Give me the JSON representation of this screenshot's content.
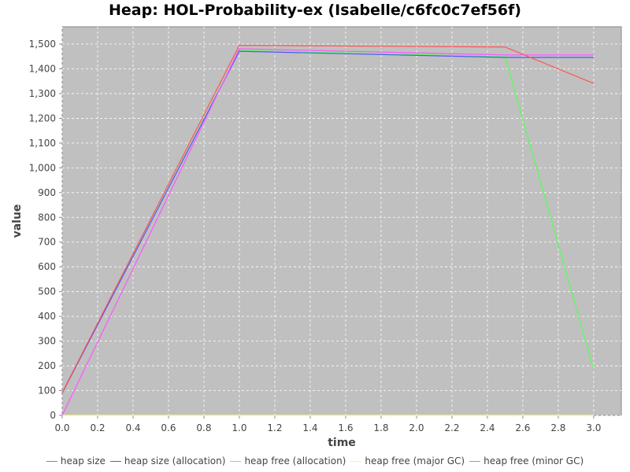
{
  "chart_data": {
    "type": "line",
    "title": "Heap: HOL-Probability-ex (Isabelle/c6fc0c7ef56f)",
    "xlabel": "time",
    "ylabel": "value",
    "xlim": [
      0,
      3.156
    ],
    "ylim": [
      0,
      1570
    ],
    "xticks": [
      "0.0",
      "0.2",
      "0.4",
      "0.6",
      "0.8",
      "1.0",
      "1.2",
      "1.4",
      "1.6",
      "1.8",
      "2.0",
      "2.2",
      "2.4",
      "2.6",
      "2.8",
      "3.0"
    ],
    "yticks": [
      "0",
      "100",
      "200",
      "300",
      "400",
      "500",
      "600",
      "700",
      "800",
      "900",
      "1,000",
      "1,100",
      "1,200",
      "1,300",
      "1,400",
      "1,500"
    ],
    "grid": true,
    "legend_position": "bottom",
    "background": "#c0c0c0",
    "series": [
      {
        "name": "heap size",
        "color": "#ff5555",
        "x": [
          0,
          1.0,
          2.5,
          3.0
        ],
        "y": [
          92,
          1495,
          1488,
          1341
        ]
      },
      {
        "name": "heap size (allocation)",
        "color": "#5555ff",
        "x": [
          0,
          1.0,
          2.5,
          3.0
        ],
        "y": [
          90,
          1471,
          1446,
          1446
        ]
      },
      {
        "name": "heap free (allocation)",
        "color": "#55ff55",
        "x": [
          0,
          1.0,
          2.5,
          3.0
        ],
        "y": [
          90,
          1474,
          1449,
          184
        ]
      },
      {
        "name": "heap free (major GC)",
        "color": "#ffff55",
        "x": [
          0,
          1.0,
          2.5,
          3.0
        ],
        "y": [
          0,
          0,
          0,
          0
        ]
      },
      {
        "name": "heap free (minor GC)",
        "color": "#ff55ff",
        "x": [
          0,
          1.0,
          2.5,
          3.0
        ],
        "y": [
          0,
          1481,
          1456,
          1456
        ]
      }
    ]
  }
}
